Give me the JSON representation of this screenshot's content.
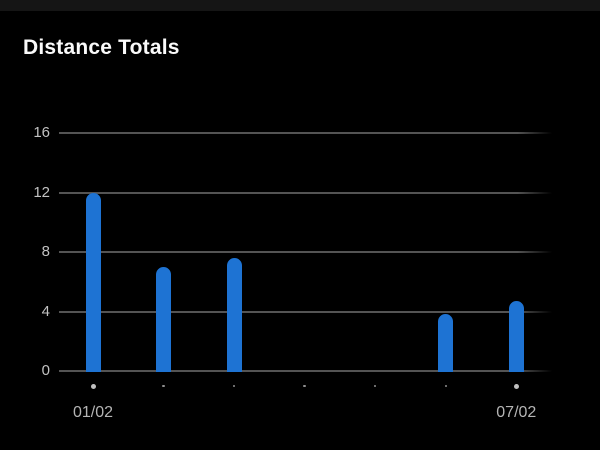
{
  "header": {
    "title": "Distance Totals"
  },
  "theme": {
    "background": "#000000",
    "status_bar": "#151515",
    "title_color": "#fafafa",
    "grid_color": "#545454",
    "y_label_color": "#c2c2c2",
    "x_label_color": "#b5b5b5",
    "bar_color": "#1e73d3",
    "dot_large_color": "#c0c0c0",
    "dot_small_color": "#8f8f8f"
  },
  "chart_data": {
    "type": "bar",
    "title": "Distance Totals",
    "categories": [
      "01/02",
      "",
      "",
      "",
      "",
      "",
      "07/02"
    ],
    "values": [
      12,
      7,
      7.6,
      0,
      0,
      3.8,
      4.7
    ],
    "y_ticks": [
      16,
      12,
      8,
      4,
      0
    ],
    "ylim": [
      0,
      17
    ],
    "xlabel": "",
    "ylabel": "",
    "grid": true,
    "legend": false,
    "layout": "7 daily slots, only first and last dates labeled; marker dot under every slot, larger dot under labeled dates"
  }
}
